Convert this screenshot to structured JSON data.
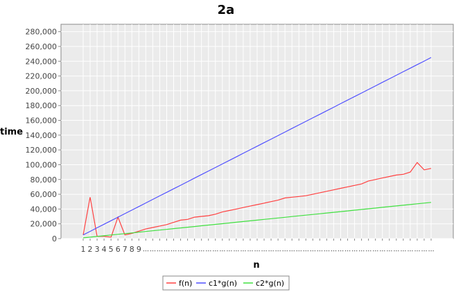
{
  "chart_data": {
    "type": "line",
    "title": "2a",
    "xlabel": "n",
    "ylabel": "time",
    "y_ticks": [
      "0",
      "20,000",
      "40,000",
      "60,000",
      "80,000",
      "100,000",
      "120,000",
      "140,000",
      "160,000",
      "180,000",
      "200,000",
      "220,000",
      "240,000",
      "260,000",
      "280,000"
    ],
    "ylim": [
      0,
      290000
    ],
    "x_ticks": [
      "1",
      "2",
      "3",
      "4",
      "5",
      "6",
      "7",
      "8",
      "9"
    ],
    "grid": true,
    "legend_position": "bottom",
    "plot_background": "#ebebeb",
    "series": [
      {
        "name": "f(n)",
        "color": "#ff4040",
        "values": [
          5000,
          56000,
          3000,
          3000,
          2000,
          29000,
          5000,
          7000,
          10000,
          13000,
          15000,
          17000,
          19000,
          22000,
          25000,
          26000,
          29000,
          30000,
          31000,
          33000,
          36000,
          38000,
          40000,
          42000,
          44000,
          46000,
          48000,
          50000,
          52000,
          55000,
          56000,
          57000,
          58000,
          60000,
          62000,
          64000,
          66000,
          68000,
          70000,
          72000,
          74000,
          78000,
          80000,
          82000,
          84000,
          86000,
          87000,
          90000,
          103000,
          93000,
          95000
        ]
      },
      {
        "name": "c1*g(n)",
        "color": "#5050ff",
        "values": [
          5000,
          9800,
          14600,
          19400,
          24200,
          29000,
          33800,
          38600,
          43400,
          48200,
          53000,
          57800,
          62600,
          67400,
          72200,
          77000,
          81800,
          86600,
          91400,
          96200,
          101000,
          105800,
          110600,
          115400,
          120200,
          125000,
          129800,
          134600,
          139400,
          144200,
          149000,
          153800,
          158600,
          163400,
          168200,
          173000,
          177800,
          182600,
          187400,
          192200,
          197000,
          201800,
          206600,
          211400,
          216200,
          221000,
          225800,
          230600,
          235400,
          240200,
          245000
        ]
      },
      {
        "name": "c2*g(n)",
        "color": "#40e040",
        "values": [
          1000,
          1960,
          2920,
          3880,
          4840,
          5800,
          6760,
          7720,
          8680,
          9640,
          10600,
          11560,
          12520,
          13480,
          14440,
          15400,
          16360,
          17320,
          18280,
          19240,
          20200,
          21160,
          22120,
          23080,
          24040,
          25000,
          25960,
          26920,
          27880,
          28840,
          29800,
          30760,
          31720,
          32680,
          33640,
          34600,
          35560,
          36520,
          37480,
          38440,
          39400,
          40360,
          41320,
          42280,
          43240,
          44200,
          45160,
          46120,
          47080,
          48040,
          49000
        ]
      }
    ]
  }
}
